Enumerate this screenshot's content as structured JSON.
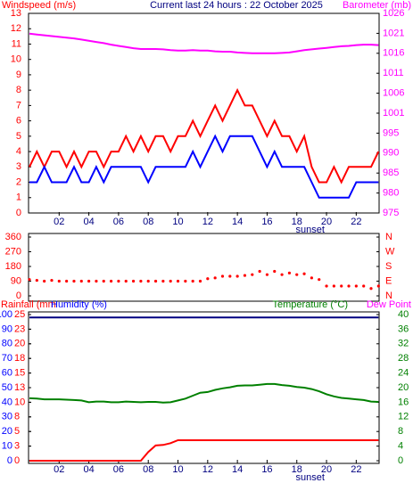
{
  "chart_data": [
    {
      "type": "line",
      "title": "Current last 24 hours : 22 October 2025",
      "y_label": "Windspeed (m/s)",
      "y_color": "#ff0000",
      "y2_label": "Barometer (mb)",
      "y2_color": "#ff00ff",
      "x_color": "#000080",
      "x": [
        0,
        0.5,
        1,
        1.5,
        2,
        2.5,
        3,
        3.5,
        4,
        4.5,
        5,
        5.5,
        6,
        6.5,
        7,
        7.5,
        8,
        8.5,
        9,
        9.5,
        10,
        10.5,
        11,
        11.5,
        12,
        12.5,
        13,
        13.5,
        14,
        14.5,
        15,
        15.5,
        16,
        16.5,
        17,
        17.5,
        18,
        18.5,
        19,
        19.5,
        20,
        20.5,
        21,
        21.5,
        22,
        22.5,
        23,
        23.5
      ],
      "xlim": [
        0,
        23.6
      ],
      "xticks": [
        {
          "value": 2,
          "label": "02"
        },
        {
          "value": 4,
          "label": "04"
        },
        {
          "value": 6,
          "label": "06"
        },
        {
          "value": 8,
          "label": "08"
        },
        10,
        12,
        14,
        16,
        18,
        20,
        22
      ],
      "ylim": [
        0,
        13
      ],
      "yticks": [
        0,
        1,
        2,
        3,
        4,
        5,
        6,
        7,
        8,
        9,
        10,
        11,
        12,
        13
      ],
      "y2lim": [
        975,
        1026
      ],
      "y2ticks": [
        975,
        {
          "value": 980.1,
          "label": "980"
        },
        {
          "value": 985.2,
          "label": "985"
        },
        {
          "value": 990.3,
          "label": "990"
        },
        {
          "value": 995.4,
          "label": "995"
        },
        {
          "value": 1000.5,
          "label": "1001"
        },
        {
          "value": 1005.6,
          "label": "1006"
        },
        {
          "value": 1010.7,
          "label": "1011"
        },
        {
          "value": 1015.8,
          "label": "1016"
        },
        {
          "value": 1020.9,
          "label": "1021"
        },
        1026
      ],
      "annotation": {
        "text": "sunset",
        "x": 18.9
      },
      "series": [
        {
          "color": "#ff0000",
          "values": [
            3,
            4,
            3,
            4,
            4,
            3,
            4,
            3,
            4,
            4,
            3,
            4,
            4,
            5,
            4,
            5,
            4,
            5,
            5,
            4,
            5,
            5,
            6,
            5,
            6,
            7,
            6,
            7,
            8,
            7,
            7,
            6,
            5,
            6,
            5,
            5,
            4,
            5,
            3,
            2,
            2,
            3,
            2,
            3,
            3,
            3,
            3,
            4
          ]
        },
        {
          "color": "#0000ff",
          "values": [
            2,
            2,
            3,
            2,
            2,
            2,
            3,
            2,
            2,
            3,
            2,
            3,
            3,
            3,
            3,
            3,
            2,
            3,
            3,
            3,
            3,
            3,
            4,
            3,
            4,
            5,
            4,
            5,
            5,
            5,
            5,
            4,
            3,
            4,
            3,
            3,
            3,
            3,
            2,
            1,
            1,
            1,
            1,
            1,
            2,
            2,
            2,
            2
          ]
        },
        {
          "color": "#ff00ff",
          "axis": "y2",
          "values": [
            1020.8,
            1020.6,
            1020.4,
            1020.2,
            1020.0,
            1019.8,
            1019.6,
            1019.3,
            1019.0,
            1018.7,
            1018.4,
            1018.0,
            1017.7,
            1017.4,
            1017.1,
            1016.9,
            1016.9,
            1016.9,
            1016.8,
            1016.6,
            1016.5,
            1016.5,
            1016.6,
            1016.5,
            1016.5,
            1016.3,
            1016.2,
            1016.2,
            1016.0,
            1015.9,
            1015.8,
            1015.8,
            1015.8,
            1015.8,
            1015.9,
            1016.0,
            1016.3,
            1016.6,
            1016.8,
            1017.0,
            1017.2,
            1017.4,
            1017.6,
            1017.7,
            1017.9,
            1018.0,
            1018.0,
            1017.9
          ]
        }
      ]
    },
    {
      "type": "scatter",
      "y_color": "#ff0000",
      "y2_color": "#ff0000",
      "x": [
        0,
        0.5,
        1,
        1.5,
        2,
        2.5,
        3,
        3.5,
        4,
        4.5,
        5,
        5.5,
        6,
        6.5,
        7,
        7.5,
        8,
        8.5,
        9,
        9.5,
        10,
        10.5,
        11,
        11.5,
        12,
        12.5,
        13,
        13.5,
        14,
        14.5,
        15,
        15.5,
        16,
        16.5,
        17,
        17.5,
        18,
        18.5,
        19,
        19.5,
        20,
        20.5,
        21,
        21.5,
        22,
        22.5,
        23,
        23.5
      ],
      "xlim": [
        0,
        23.6
      ],
      "ylim": [
        0,
        360
      ],
      "yticks": [
        0,
        90,
        180,
        270,
        360
      ],
      "y2lim": [
        0,
        360
      ],
      "y2ticks": [
        {
          "value": 0,
          "label": "N"
        },
        {
          "value": 90,
          "label": "E"
        },
        {
          "value": 180,
          "label": "S"
        },
        {
          "value": 270,
          "label": "W"
        },
        {
          "value": 360,
          "label": "N"
        }
      ],
      "series": [
        {
          "color": "#ff0000",
          "values": [
            100,
            95,
            90,
            95,
            90,
            90,
            90,
            90,
            90,
            90,
            90,
            90,
            90,
            90,
            90,
            90,
            90,
            90,
            90,
            90,
            90,
            90,
            90,
            90,
            105,
            110,
            120,
            120,
            120,
            125,
            130,
            150,
            130,
            150,
            130,
            140,
            130,
            135,
            110,
            100,
            60,
            60,
            60,
            60,
            60,
            60,
            45,
            60
          ]
        }
      ]
    },
    {
      "type": "line",
      "y3_label": "Rainfall (mm",
      "y3_color": "#ff0000",
      "y_label": "Humidity (%)",
      "y_color": "#0000ff",
      "y2_label": "Temperature (°C)",
      "y2_color": "#008000",
      "dew_label": "Dew Point",
      "dew_color": "#ff00ff",
      "x_color": "#000080",
      "x": [
        0,
        0.5,
        1,
        1.5,
        2,
        2.5,
        3,
        3.5,
        4,
        4.5,
        5,
        5.5,
        6,
        6.5,
        7,
        7.5,
        8,
        8.5,
        9,
        9.5,
        10,
        10.5,
        11,
        11.5,
        12,
        12.5,
        13,
        13.5,
        14,
        14.5,
        15,
        15.5,
        16,
        16.5,
        17,
        17.5,
        18,
        18.5,
        19,
        19.5,
        20,
        20.5,
        21,
        21.5,
        22,
        22.5,
        23,
        23.5
      ],
      "xlim": [
        0,
        23.6
      ],
      "xticks": [
        {
          "value": 2,
          "label": "02"
        },
        {
          "value": 4,
          "label": "04"
        },
        {
          "value": 6,
          "label": "06"
        },
        {
          "value": 8,
          "label": "08"
        },
        10,
        12,
        14,
        16,
        18,
        20,
        22
      ],
      "ylim": [
        0,
        100
      ],
      "yticks": [
        0,
        10,
        20,
        30,
        40,
        50,
        60,
        70,
        80,
        90,
        100
      ],
      "y3lim": [
        0,
        25
      ],
      "y3ticks": [
        0,
        {
          "value": 2.5,
          "label": "3"
        },
        5,
        {
          "value": 7.5,
          "label": "8"
        },
        10,
        {
          "value": 12.5,
          "label": "13"
        },
        15,
        {
          "value": 17.5,
          "label": "18"
        },
        20,
        {
          "value": 22.5,
          "label": "23"
        },
        25
      ],
      "y2lim": [
        0,
        40
      ],
      "y2ticks": [
        0,
        4,
        8,
        12,
        16,
        20,
        24,
        28,
        32,
        36,
        40
      ],
      "annotation": {
        "text": "sunset",
        "x": 18.9
      },
      "series": [
        {
          "color": "#000080",
          "values": [
            98,
            98,
            98,
            98,
            98,
            98,
            98,
            98,
            98,
            98,
            98,
            98,
            98,
            98,
            98,
            98,
            98,
            98,
            98,
            98,
            98,
            98,
            98,
            98,
            98,
            98,
            98,
            98,
            98,
            98,
            98,
            98,
            98,
            98,
            98,
            98,
            98,
            98,
            98,
            98,
            98,
            98,
            98,
            98,
            98,
            98,
            98,
            98
          ]
        },
        {
          "color": "#008000",
          "axis": "y2",
          "values": [
            17.1,
            17.0,
            16.8,
            16.8,
            16.8,
            16.7,
            16.6,
            16.5,
            16.0,
            16.2,
            16.2,
            16.0,
            16.0,
            16.2,
            16.1,
            16.0,
            16.1,
            16.1,
            15.9,
            16.0,
            16.5,
            17.0,
            17.8,
            18.6,
            18.8,
            19.4,
            19.8,
            20.1,
            20.5,
            20.6,
            20.6,
            20.8,
            21.0,
            21.0,
            20.7,
            20.5,
            20.2,
            20.0,
            19.6,
            19.0,
            18.2,
            17.6,
            17.2,
            17.0,
            16.8,
            16.6,
            16.2,
            16.1
          ]
        },
        {
          "color": "#ff0000",
          "axis": "y3",
          "values": [
            0,
            0,
            0,
            0,
            0,
            0,
            0,
            0,
            0,
            0,
            0,
            0,
            0,
            0,
            0,
            0,
            1.5,
            2.6,
            2.7,
            3.0,
            3.5,
            3.5,
            3.5,
            3.5,
            3.5,
            3.5,
            3.5,
            3.5,
            3.5,
            3.5,
            3.5,
            3.5,
            3.5,
            3.5,
            3.5,
            3.5,
            3.5,
            3.5,
            3.5,
            3.5,
            3.5,
            3.5,
            3.5,
            3.5,
            3.5,
            3.5,
            3.5,
            3.5
          ]
        }
      ]
    }
  ]
}
